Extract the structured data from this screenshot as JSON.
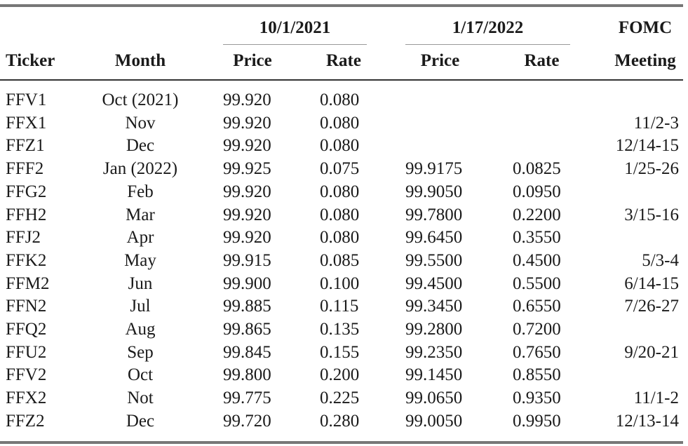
{
  "header": {
    "group1": "10/1/2021",
    "group2": "1/17/2022",
    "fomc_top": "FOMC",
    "ticker": "Ticker",
    "month": "Month",
    "price1": "Price",
    "rate1": "Rate",
    "price2": "Price",
    "rate2": "Rate",
    "meeting": "Meeting"
  },
  "rows": [
    {
      "ticker": "FFV1",
      "month": "Oct (2021)",
      "price1": "99.920",
      "rate1": "0.080",
      "price2": "",
      "rate2": "",
      "meeting": ""
    },
    {
      "ticker": "FFX1",
      "month": "Nov",
      "price1": "99.920",
      "rate1": "0.080",
      "price2": "",
      "rate2": "",
      "meeting": "11/2-3"
    },
    {
      "ticker": "FFZ1",
      "month": "Dec",
      "price1": "99.920",
      "rate1": "0.080",
      "price2": "",
      "rate2": "",
      "meeting": "12/14-15"
    },
    {
      "ticker": "FFF2",
      "month": "Jan (2022)",
      "price1": "99.925",
      "rate1": "0.075",
      "price2": "99.9175",
      "rate2": "0.0825",
      "meeting": "1/25-26"
    },
    {
      "ticker": "FFG2",
      "month": "Feb",
      "price1": "99.920",
      "rate1": "0.080",
      "price2": "99.9050",
      "rate2": "0.0950",
      "meeting": ""
    },
    {
      "ticker": "FFH2",
      "month": "Mar",
      "price1": "99.920",
      "rate1": "0.080",
      "price2": "99.7800",
      "rate2": "0.2200",
      "meeting": "3/15-16"
    },
    {
      "ticker": "FFJ2",
      "month": "Apr",
      "price1": "99.920",
      "rate1": "0.080",
      "price2": "99.6450",
      "rate2": "0.3550",
      "meeting": ""
    },
    {
      "ticker": "FFK2",
      "month": "May",
      "price1": "99.915",
      "rate1": "0.085",
      "price2": "99.5500",
      "rate2": "0.4500",
      "meeting": "5/3-4"
    },
    {
      "ticker": "FFM2",
      "month": "Jun",
      "price1": "99.900",
      "rate1": "0.100",
      "price2": "99.4500",
      "rate2": "0.5500",
      "meeting": "6/14-15"
    },
    {
      "ticker": "FFN2",
      "month": "Jul",
      "price1": "99.885",
      "rate1": "0.115",
      "price2": "99.3450",
      "rate2": "0.6550",
      "meeting": "7/26-27"
    },
    {
      "ticker": "FFQ2",
      "month": "Aug",
      "price1": "99.865",
      "rate1": "0.135",
      "price2": "99.2800",
      "rate2": "0.7200",
      "meeting": ""
    },
    {
      "ticker": "FFU2",
      "month": "Sep",
      "price1": "99.845",
      "rate1": "0.155",
      "price2": "99.2350",
      "rate2": "0.7650",
      "meeting": "9/20-21"
    },
    {
      "ticker": "FFV2",
      "month": "Oct",
      "price1": "99.800",
      "rate1": "0.200",
      "price2": "99.1450",
      "rate2": "0.8550",
      "meeting": ""
    },
    {
      "ticker": "FFX2",
      "month": "Not",
      "price1": "99.775",
      "rate1": "0.225",
      "price2": "99.0650",
      "rate2": "0.9350",
      "meeting": "11/1-2"
    },
    {
      "ticker": "FFZ2",
      "month": "Dec",
      "price1": "99.720",
      "rate1": "0.280",
      "price2": "99.0050",
      "rate2": "0.9950",
      "meeting": "12/13-14"
    }
  ]
}
